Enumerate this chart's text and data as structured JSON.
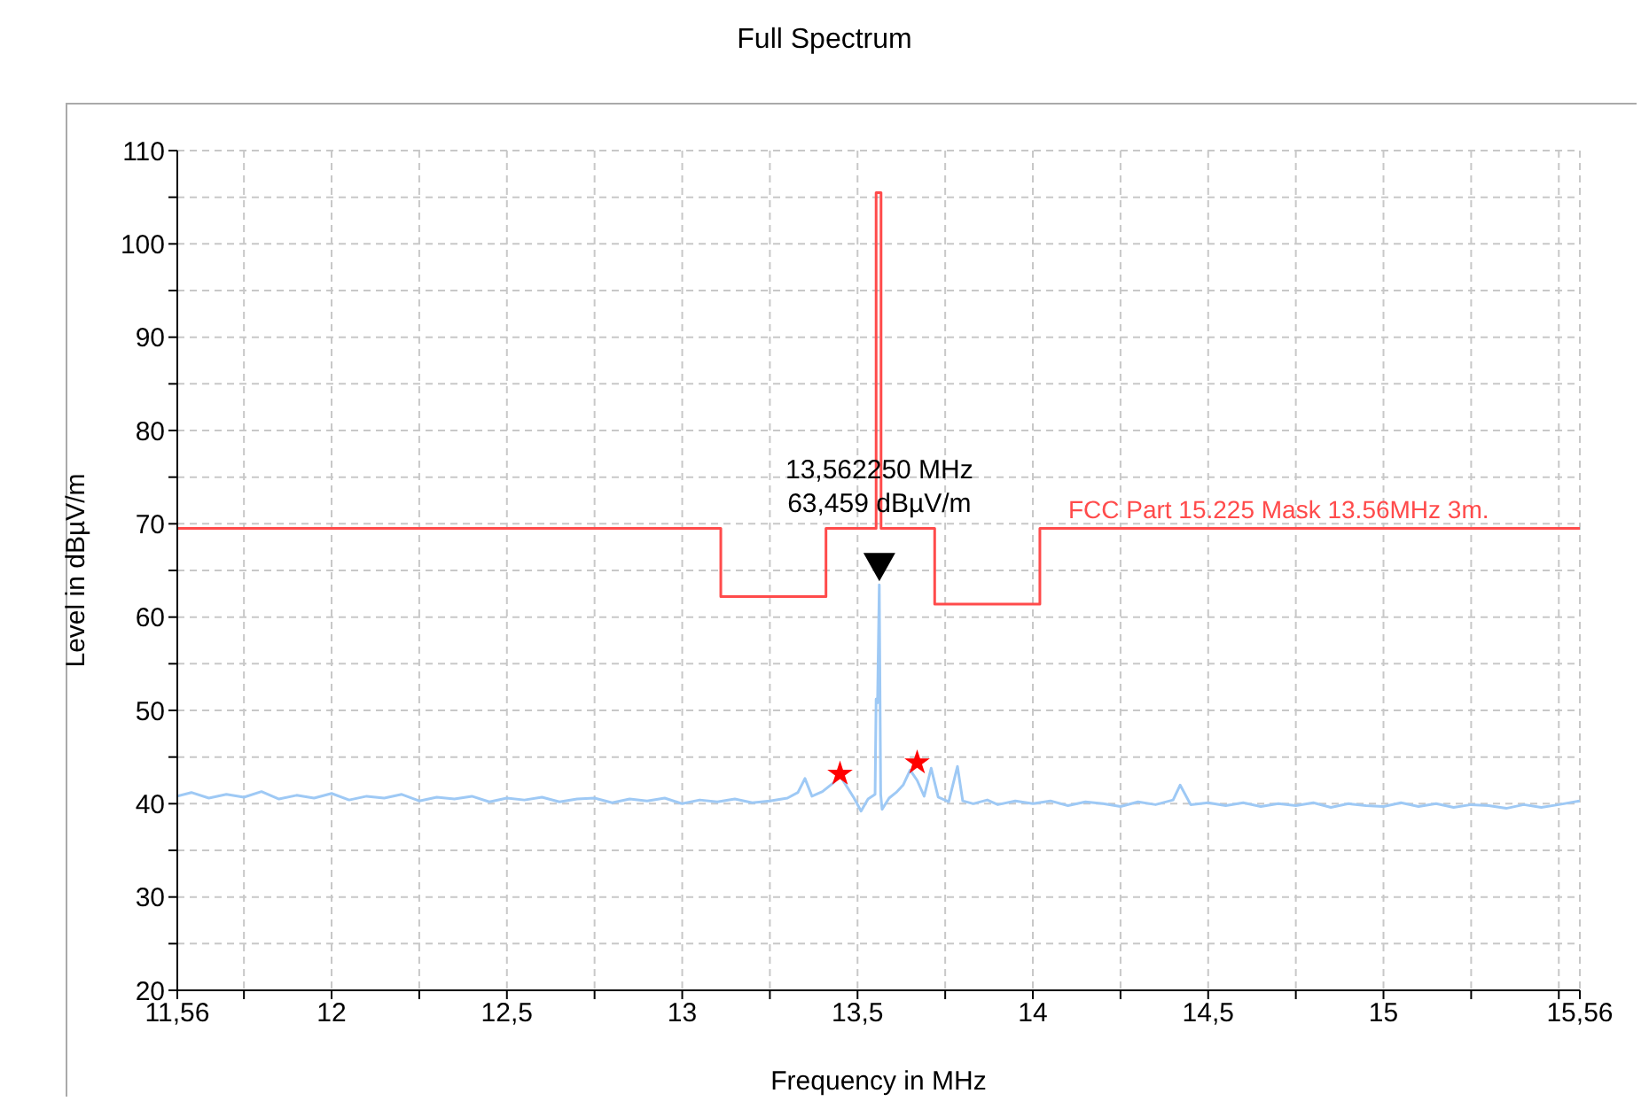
{
  "chart_data": {
    "type": "line",
    "title": "Full Spectrum",
    "xlabel": "Frequency in MHz",
    "ylabel": "Level in dBµV/m",
    "xlim": [
      11.56,
      15.56
    ],
    "xticks": [
      {
        "value": 11.56,
        "label": "11,56"
      },
      {
        "value": 11.75,
        "label": null
      },
      12,
      {
        "value": 12.25,
        "label": null
      },
      {
        "value": 12.5,
        "label": "12,5"
      },
      {
        "value": 12.75,
        "label": null
      },
      13,
      {
        "value": 13.25,
        "label": null
      },
      {
        "value": 13.5,
        "label": "13,5"
      },
      {
        "value": 13.75,
        "label": null
      },
      14,
      {
        "value": 14.25,
        "label": null
      },
      {
        "value": 14.5,
        "label": "14,5"
      },
      {
        "value": 14.75,
        "label": null
      },
      15,
      {
        "value": 15.25,
        "label": null
      },
      {
        "value": 15.5,
        "label": null
      },
      {
        "value": 15.56,
        "label": "15,56"
      }
    ],
    "ylim": [
      20,
      110
    ],
    "yticks": [
      20,
      {
        "value": 25,
        "label": null
      },
      30,
      {
        "value": 35,
        "label": null
      },
      40,
      {
        "value": 45,
        "label": null
      },
      50,
      {
        "value": 55,
        "label": null
      },
      60,
      {
        "value": 65,
        "label": null
      },
      70,
      {
        "value": 75,
        "label": null
      },
      80,
      {
        "value": 85,
        "label": null
      },
      90,
      {
        "value": 95,
        "label": null
      },
      100,
      {
        "value": 105,
        "label": null
      },
      110
    ],
    "grid": true,
    "legend": false,
    "line_style": "solid",
    "marker": "none",
    "series": [
      {
        "type": "line",
        "color": "#9ec9f5",
        "x": [
          11.56,
          11.6,
          11.65,
          11.7,
          11.75,
          11.8,
          11.85,
          11.9,
          11.95,
          12.0,
          12.05,
          12.1,
          12.15,
          12.2,
          12.25,
          12.3,
          12.35,
          12.4,
          12.45,
          12.5,
          12.55,
          12.6,
          12.65,
          12.7,
          12.75,
          12.8,
          12.85,
          12.9,
          12.95,
          13.0,
          13.05,
          13.1,
          13.15,
          13.2,
          13.25,
          13.3,
          13.33,
          13.35,
          13.37,
          13.4,
          13.43,
          13.45,
          13.47,
          13.49,
          13.51,
          13.53,
          13.55,
          13.553,
          13.557,
          13.562,
          13.566,
          13.57,
          13.59,
          13.61,
          13.63,
          13.65,
          13.67,
          13.69,
          13.71,
          13.73,
          13.76,
          13.785,
          13.8,
          13.83,
          13.87,
          13.9,
          13.95,
          14.0,
          14.05,
          14.1,
          14.15,
          14.2,
          14.25,
          14.3,
          14.35,
          14.4,
          14.42,
          14.45,
          14.5,
          14.55,
          14.6,
          14.65,
          14.7,
          14.75,
          14.8,
          14.85,
          14.9,
          14.95,
          15.0,
          15.05,
          15.1,
          15.15,
          15.2,
          15.25,
          15.3,
          15.35,
          15.4,
          15.45,
          15.5,
          15.56
        ],
        "values": [
          40.8,
          41.2,
          40.6,
          41.0,
          40.7,
          41.3,
          40.5,
          40.9,
          40.6,
          41.1,
          40.4,
          40.8,
          40.6,
          41.0,
          40.3,
          40.7,
          40.5,
          40.8,
          40.2,
          40.6,
          40.4,
          40.7,
          40.2,
          40.5,
          40.6,
          40.1,
          40.5,
          40.3,
          40.6,
          40.0,
          40.4,
          40.2,
          40.5,
          40.1,
          40.3,
          40.6,
          41.2,
          42.7,
          40.8,
          41.3,
          42.2,
          43.0,
          41.8,
          40.6,
          39.2,
          40.5,
          41.0,
          51.2,
          50.8,
          63.459,
          41.0,
          39.4,
          40.6,
          41.2,
          42.0,
          43.6,
          42.5,
          40.8,
          43.8,
          40.7,
          40.2,
          44.0,
          40.3,
          40.0,
          40.4,
          39.9,
          40.3,
          40.0,
          40.3,
          39.8,
          40.2,
          40.0,
          39.7,
          40.2,
          39.9,
          40.4,
          42.0,
          39.9,
          40.1,
          39.8,
          40.1,
          39.7,
          40.0,
          39.8,
          40.1,
          39.6,
          40.0,
          39.8,
          39.7,
          40.1,
          39.7,
          40.0,
          39.6,
          39.9,
          39.8,
          39.5,
          39.9,
          39.6,
          39.9,
          40.3
        ]
      },
      {
        "type": "line",
        "name": "FCC Part 15.225 Mask 13.56MHz 3m.",
        "color": "#ff4b4b",
        "x": [
          11.56,
          13.11,
          13.11,
          13.41,
          13.41,
          13.553,
          13.553,
          13.567,
          13.567,
          13.72,
          13.72,
          14.02,
          14.02,
          15.56
        ],
        "values": [
          69.5,
          69.5,
          62.2,
          62.2,
          69.5,
          69.5,
          105.5,
          105.5,
          69.5,
          69.5,
          61.4,
          61.4,
          69.5,
          69.5
        ]
      },
      {
        "type": "scatter",
        "color": "#ff0000",
        "marker": "star",
        "x": [
          13.45,
          13.67
        ],
        "values": [
          43.2,
          44.4
        ]
      }
    ],
    "annotations": [
      {
        "text": "13,562250 MHz\n63,459 dBµV/m",
        "x": 13.56225,
        "y": 63.459
      }
    ]
  }
}
